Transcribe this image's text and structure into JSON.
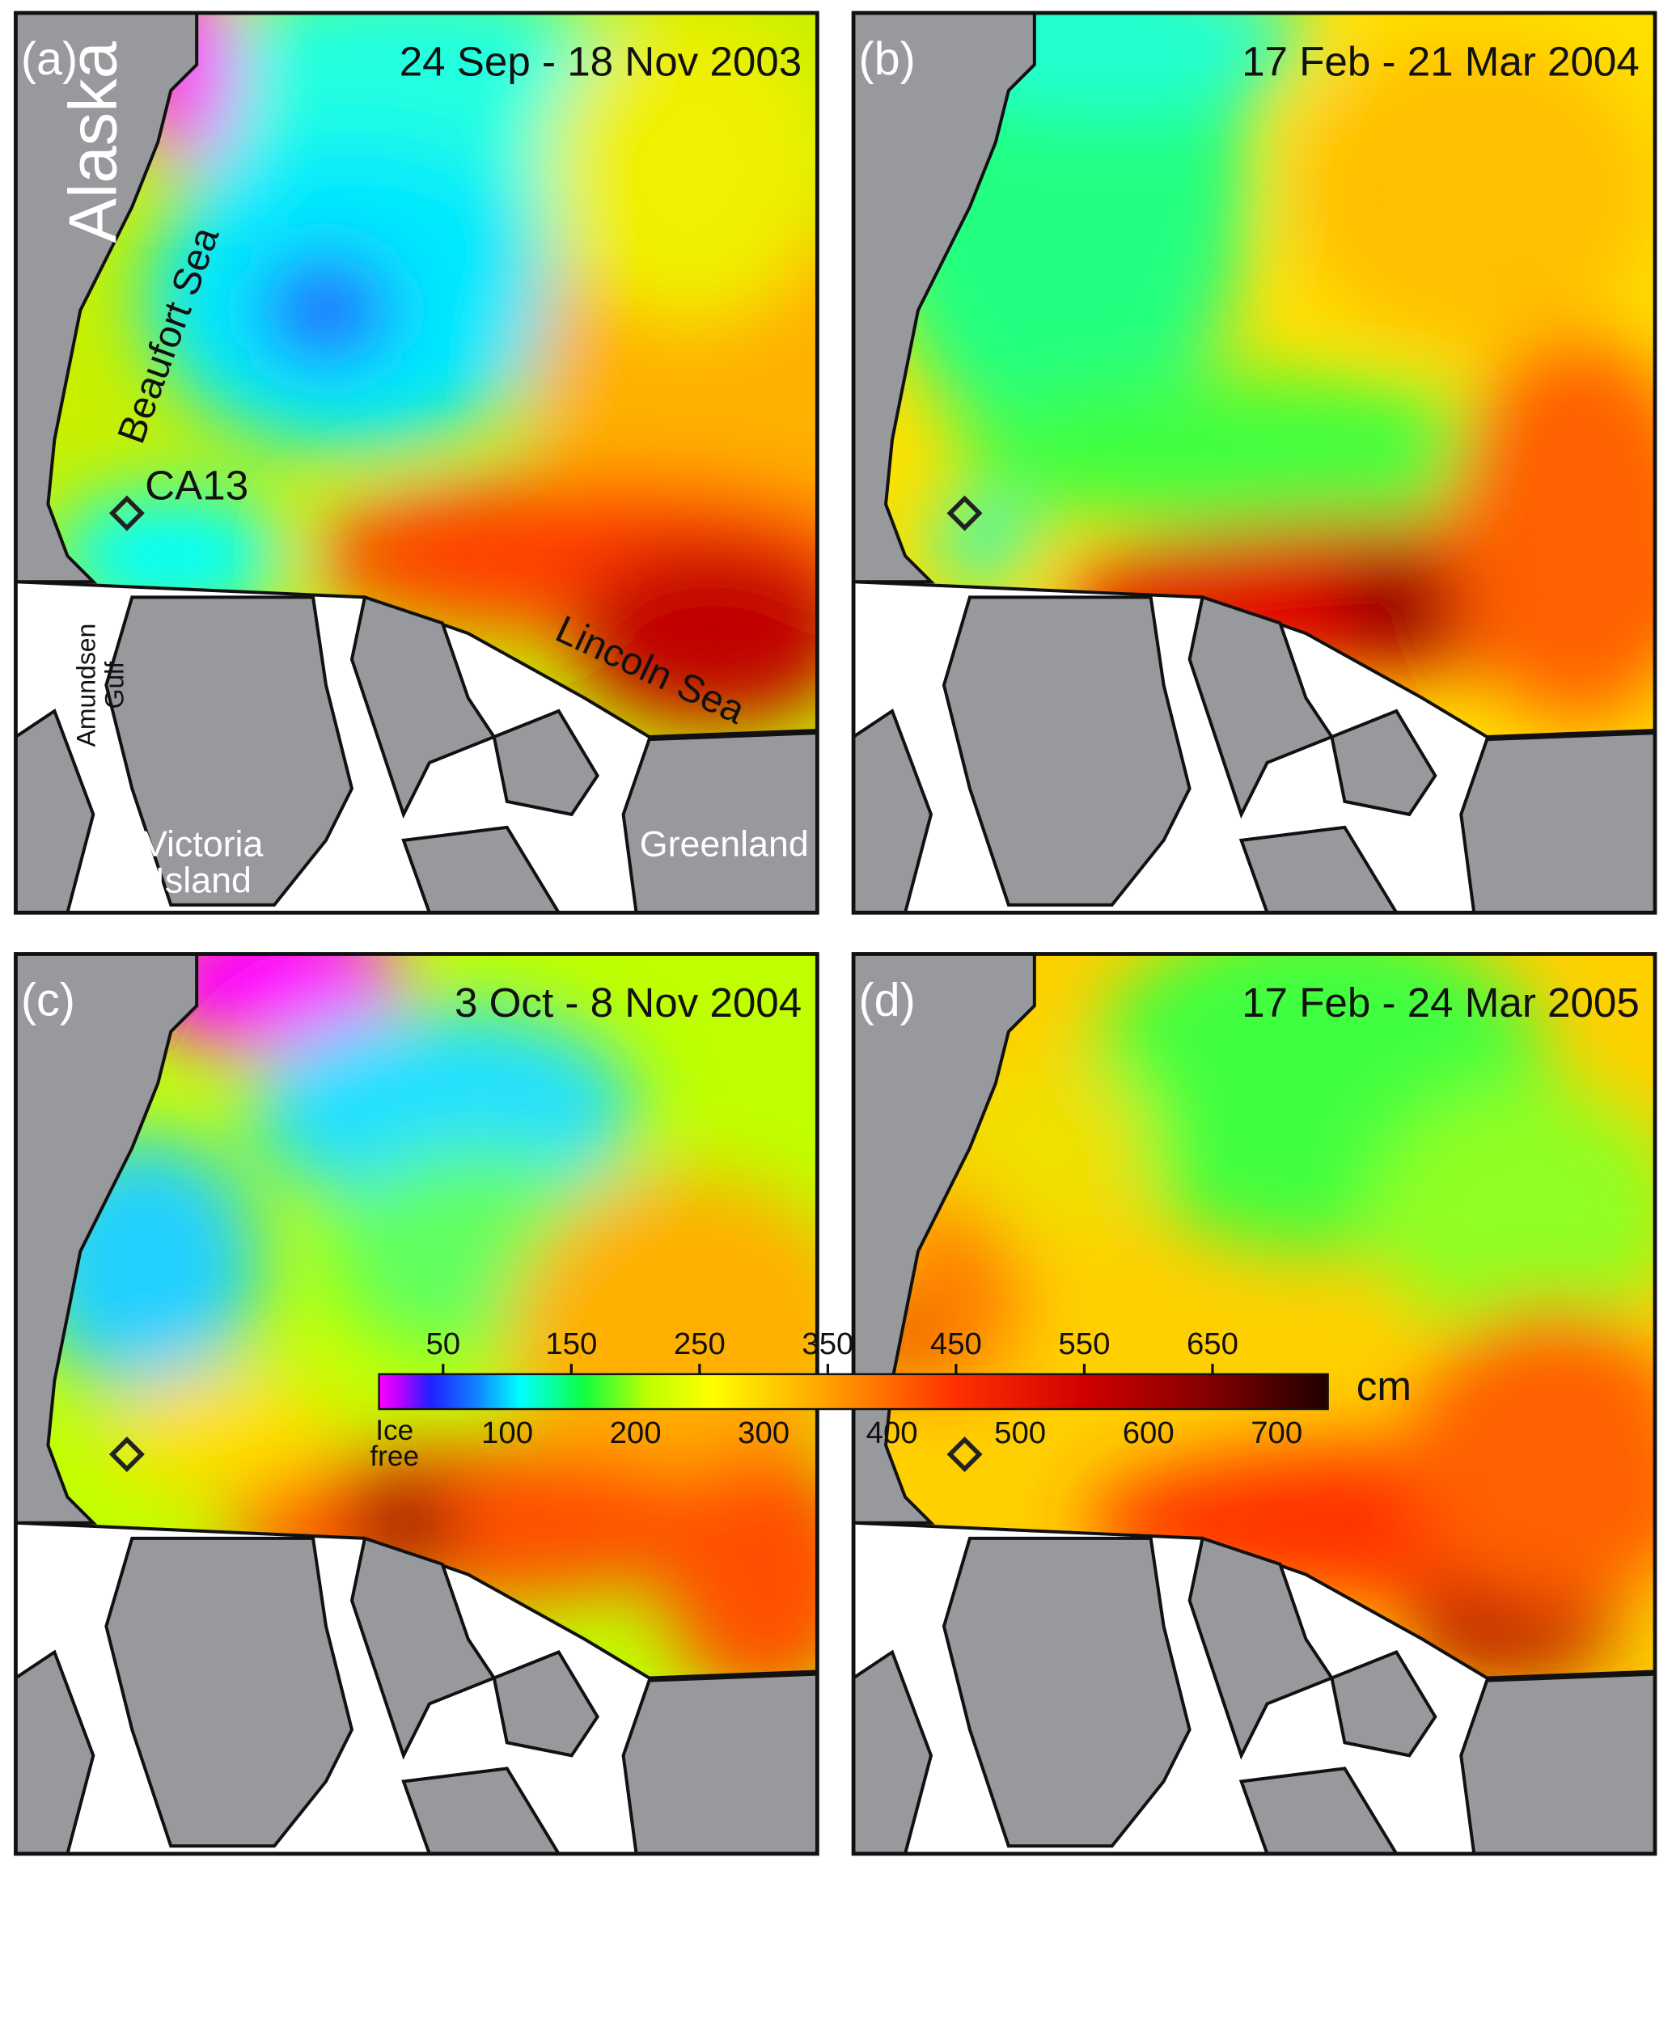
{
  "panels": [
    {
      "label": "(a)",
      "period": "24 Sep - 18 Nov 2003"
    },
    {
      "label": "(b)",
      "period": "17 Feb - 21 Mar 2004"
    },
    {
      "label": "(c)",
      "period": "3 Oct - 8 Nov 2004"
    },
    {
      "label": "(d)",
      "period": "17 Feb - 24 Mar 2005"
    }
  ],
  "annotations": {
    "alaska": "Alaska",
    "beaufort": "Beaufort Sea",
    "station": "CA13",
    "lincoln": "Lincoln Sea",
    "amundsen": [
      "Amundsen",
      "Gulf"
    ],
    "victoria": [
      "Victoria",
      "Island"
    ],
    "greenland": "Greenland"
  },
  "colorbar": {
    "unit": "cm",
    "clim": [
      0,
      740
    ],
    "ice_free": [
      "Ice",
      "free"
    ],
    "top_ticks": [
      50,
      150,
      250,
      350,
      450,
      550,
      650
    ],
    "bottom_ticks": [
      100,
      200,
      300,
      400,
      500,
      600,
      700
    ],
    "stops": [
      {
        "value": 0,
        "color": "#ff00ff"
      },
      {
        "value": 15,
        "color": "#c000ff"
      },
      {
        "value": 40,
        "color": "#2020ff"
      },
      {
        "value": 75,
        "color": "#1080ff"
      },
      {
        "value": 110,
        "color": "#00ffff"
      },
      {
        "value": 160,
        "color": "#10ff40"
      },
      {
        "value": 210,
        "color": "#c0ff00"
      },
      {
        "value": 260,
        "color": "#ffff00"
      },
      {
        "value": 350,
        "color": "#ffa000"
      },
      {
        "value": 450,
        "color": "#ff3000"
      },
      {
        "value": 550,
        "color": "#d00000"
      },
      {
        "value": 650,
        "color": "#800000"
      },
      {
        "value": 740,
        "color": "#200000"
      }
    ]
  }
}
